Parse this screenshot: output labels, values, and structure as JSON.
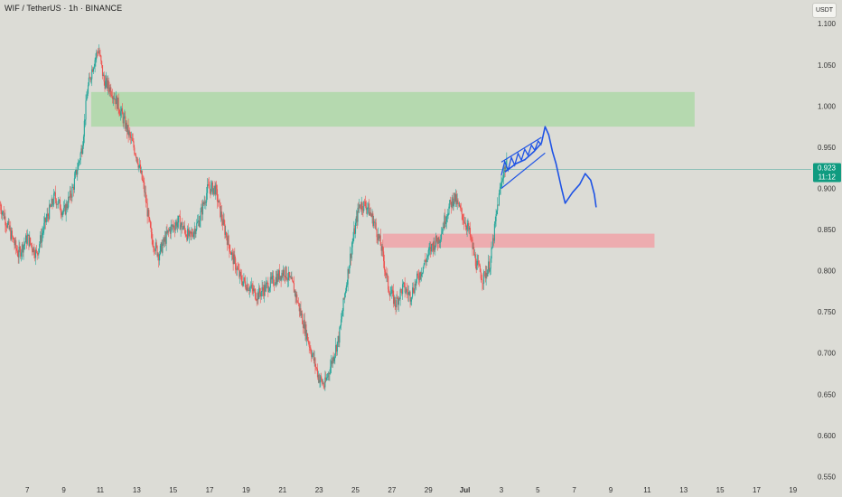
{
  "header": {
    "title": "WIF / TetherUS · 1h · BINANCE",
    "currency_button": "USDT"
  },
  "price_tag": {
    "price": "0.923",
    "countdown": "11:12",
    "color": "#0f9b80"
  },
  "colors": {
    "background": "#dcdcd6",
    "up_candle": "#26a69a",
    "down_candle": "#ef5350",
    "resistance_zone": "#a8d8a2",
    "support_zone": "#f0a3a8",
    "projection": "#1e53e5",
    "price_line": "#5fb0a6"
  },
  "chart_data": {
    "type": "candlestick",
    "symbol": "WIF / TetherUS",
    "interval": "1h",
    "exchange": "BINANCE",
    "y_axis": {
      "ticks": [
        "1.100",
        "1.050",
        "1.000",
        "0.950",
        "0.900",
        "0.850",
        "0.800",
        "0.750",
        "0.700",
        "0.650",
        "0.600",
        "0.550"
      ],
      "range": [
        0.545,
        1.12
      ]
    },
    "x_axis": {
      "ticks": [
        "7",
        "9",
        "11",
        "13",
        "15",
        "17",
        "19",
        "21",
        "23",
        "25",
        "27",
        "29",
        "Jul",
        "3",
        "5",
        "7",
        "9",
        "11",
        "13",
        "15",
        "17",
        "19"
      ],
      "tick_days": [
        7,
        9,
        11,
        13,
        15,
        17,
        19,
        21,
        23,
        25,
        27,
        29,
        31,
        33,
        35,
        37,
        39,
        41,
        43,
        45,
        47,
        49
      ],
      "range_days": [
        5.5,
        50
      ]
    },
    "price_path": [
      [
        5.5,
        0.88
      ],
      [
        6.0,
        0.85
      ],
      [
        6.5,
        0.82
      ],
      [
        7.0,
        0.84
      ],
      [
        7.5,
        0.82
      ],
      [
        8.0,
        0.86
      ],
      [
        8.5,
        0.89
      ],
      [
        9.0,
        0.87
      ],
      [
        9.5,
        0.9
      ],
      [
        10.0,
        0.95
      ],
      [
        10.3,
        1.02
      ],
      [
        10.6,
        1.05
      ],
      [
        10.9,
        1.07
      ],
      [
        11.2,
        1.03
      ],
      [
        11.6,
        1.02
      ],
      [
        12.0,
        1.0
      ],
      [
        12.5,
        0.97
      ],
      [
        13.0,
        0.94
      ],
      [
        13.4,
        0.9
      ],
      [
        13.8,
        0.84
      ],
      [
        14.2,
        0.82
      ],
      [
        14.8,
        0.85
      ],
      [
        15.3,
        0.86
      ],
      [
        15.9,
        0.84
      ],
      [
        16.4,
        0.86
      ],
      [
        16.9,
        0.9
      ],
      [
        17.3,
        0.9
      ],
      [
        17.7,
        0.86
      ],
      [
        18.2,
        0.82
      ],
      [
        18.7,
        0.79
      ],
      [
        19.2,
        0.78
      ],
      [
        19.6,
        0.77
      ],
      [
        20.1,
        0.78
      ],
      [
        20.6,
        0.79
      ],
      [
        21.1,
        0.8
      ],
      [
        21.6,
        0.78
      ],
      [
        22.1,
        0.74
      ],
      [
        22.6,
        0.7
      ],
      [
        23.0,
        0.67
      ],
      [
        23.3,
        0.66
      ],
      [
        23.7,
        0.69
      ],
      [
        24.1,
        0.72
      ],
      [
        24.4,
        0.77
      ],
      [
        24.8,
        0.83
      ],
      [
        25.2,
        0.88
      ],
      [
        25.6,
        0.88
      ],
      [
        26.0,
        0.86
      ],
      [
        26.4,
        0.83
      ],
      [
        26.8,
        0.78
      ],
      [
        27.2,
        0.76
      ],
      [
        27.6,
        0.78
      ],
      [
        28.0,
        0.77
      ],
      [
        28.4,
        0.79
      ],
      [
        28.8,
        0.81
      ],
      [
        29.2,
        0.83
      ],
      [
        29.6,
        0.84
      ],
      [
        30.0,
        0.87
      ],
      [
        30.4,
        0.89
      ],
      [
        30.8,
        0.87
      ],
      [
        31.2,
        0.85
      ],
      [
        31.6,
        0.81
      ],
      [
        32.0,
        0.79
      ],
      [
        32.4,
        0.81
      ],
      [
        32.8,
        0.88
      ],
      [
        33.1,
        0.92
      ],
      [
        33.3,
        0.93
      ]
    ],
    "last_price": 0.923,
    "zones": [
      {
        "name": "resistance-zone",
        "color": "green",
        "price_top": 1.017,
        "price_bottom": 0.975,
        "day_start": 10.5,
        "day_end": 43.6
      },
      {
        "name": "support-zone",
        "color": "red",
        "price_top": 0.845,
        "price_bottom": 0.828,
        "day_start": 26.5,
        "day_end": 41.4
      }
    ],
    "projection": {
      "color": "blue",
      "path": [
        [
          33.2,
          0.92
        ],
        [
          33.8,
          0.93
        ],
        [
          34.3,
          0.935
        ],
        [
          34.8,
          0.945
        ],
        [
          35.2,
          0.955
        ],
        [
          35.4,
          0.975
        ],
        [
          35.6,
          0.965
        ],
        [
          35.8,
          0.945
        ],
        [
          36.0,
          0.93
        ],
        [
          36.3,
          0.9
        ],
        [
          36.5,
          0.882
        ],
        [
          36.9,
          0.895
        ],
        [
          37.3,
          0.905
        ],
        [
          37.6,
          0.918
        ],
        [
          37.9,
          0.91
        ],
        [
          38.1,
          0.893
        ],
        [
          38.2,
          0.877
        ]
      ],
      "channel_upper": [
        [
          33.0,
          0.932
        ],
        [
          35.2,
          0.962
        ]
      ],
      "channel_lower": [
        [
          33.0,
          0.9
        ],
        [
          35.4,
          0.943
        ]
      ]
    },
    "grid": false,
    "legend": "none"
  }
}
